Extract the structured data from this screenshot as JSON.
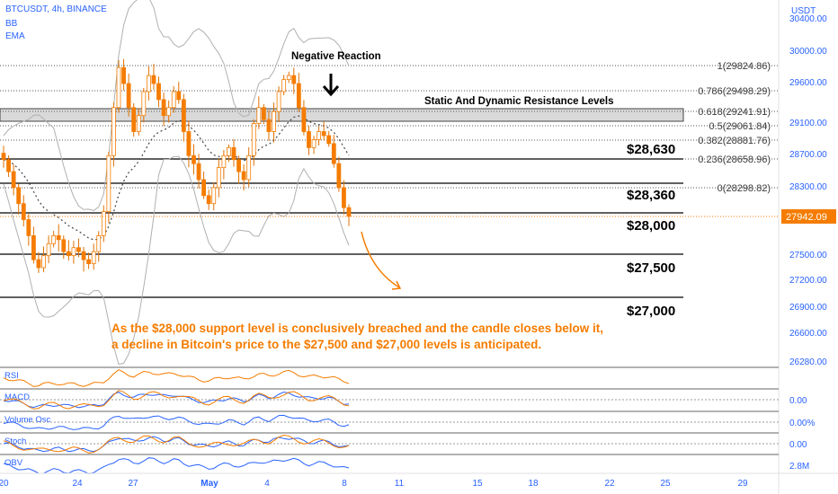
{
  "header": {
    "symbol_line": "BTCUSDT, 4h, BINANCE",
    "indicators": [
      "BB",
      "EMA"
    ],
    "currency": "USDT"
  },
  "price_axis_labels": [
    "30400.00",
    "30000.00",
    "29600.00",
    "29100.00",
    "28700.00",
    "28300.00",
    "27500.00",
    "27200.00",
    "26900.00",
    "26600.00",
    "26280.00"
  ],
  "current_price": {
    "value": 27942.09,
    "label": "27942.09",
    "color": "#f57c00"
  },
  "fib_levels": [
    {
      "ratio": "1",
      "label": "1(29824.86)"
    },
    {
      "ratio": "0.786",
      "label": "0.786(29498.29)"
    },
    {
      "ratio": "0.618",
      "label": "0.618(29241.91)"
    },
    {
      "ratio": "0.5",
      "label": "0.5(29061.84)"
    },
    {
      "ratio": "0.382",
      "label": "0.382(28881.76)"
    },
    {
      "ratio": "0.236",
      "label": "0.236(28658.96)"
    },
    {
      "ratio": "0",
      "label": "0(28298.82)"
    }
  ],
  "key_levels": [
    {
      "label": "$28,630"
    },
    {
      "label": "$28,360"
    },
    {
      "label": "$28,000"
    },
    {
      "label": "$27,500"
    },
    {
      "label": "$27,000"
    }
  ],
  "annotations": {
    "negative_reaction": "Negative Reaction",
    "resistance_zone": "Static And Dynamic Resistance Levels",
    "forecast_line1": "As the $28,000 support level is conclusively breached and the candle closes below it,",
    "forecast_line2": "a decline in Bitcoin's price to the $27,500 and $27,000 levels is anticipated."
  },
  "indicator_panes": [
    {
      "name": "RSI",
      "value": ""
    },
    {
      "name": "MACD",
      "value": "0.00"
    },
    {
      "name": "Volume Osc",
      "value": "0.00%"
    },
    {
      "name": "Stoch",
      "value": "0.00"
    },
    {
      "name": "OBV",
      "value": "2.8M"
    }
  ],
  "time_axis_labels": [
    "20",
    "24",
    "27",
    "May",
    "4",
    "8",
    "11",
    "15",
    "18",
    "22",
    "25",
    "29"
  ],
  "colors": {
    "up": "#f57c00",
    "down": "#f57c00",
    "body_up": "#ff9800",
    "accent": "#2962ff",
    "grid": "#888888"
  },
  "chart_data": {
    "type": "candlestick",
    "symbol": "BTCUSDT",
    "timeframe": "4h",
    "approx_close_series": [
      28650,
      28500,
      28300,
      28100,
      27900,
      27700,
      27400,
      27300,
      27450,
      27600,
      27700,
      27650,
      27500,
      27450,
      27550,
      27500,
      27400,
      27350,
      27500,
      27700,
      28000,
      28700,
      29300,
      29800,
      29600,
      29300,
      29000,
      29200,
      29500,
      29700,
      29600,
      29400,
      29200,
      29300,
      29500,
      29400,
      29000,
      28700,
      28600,
      28400,
      28200,
      28100,
      28300,
      28550,
      28700,
      28800,
      28650,
      28500,
      28400,
      28700,
      29100,
      29300,
      29150,
      29000,
      29250,
      29500,
      29650,
      29700,
      29600,
      29300,
      29000,
      28800,
      28900,
      29000,
      28950,
      28850,
      28600,
      28300,
      28050,
      27942
    ]
  }
}
